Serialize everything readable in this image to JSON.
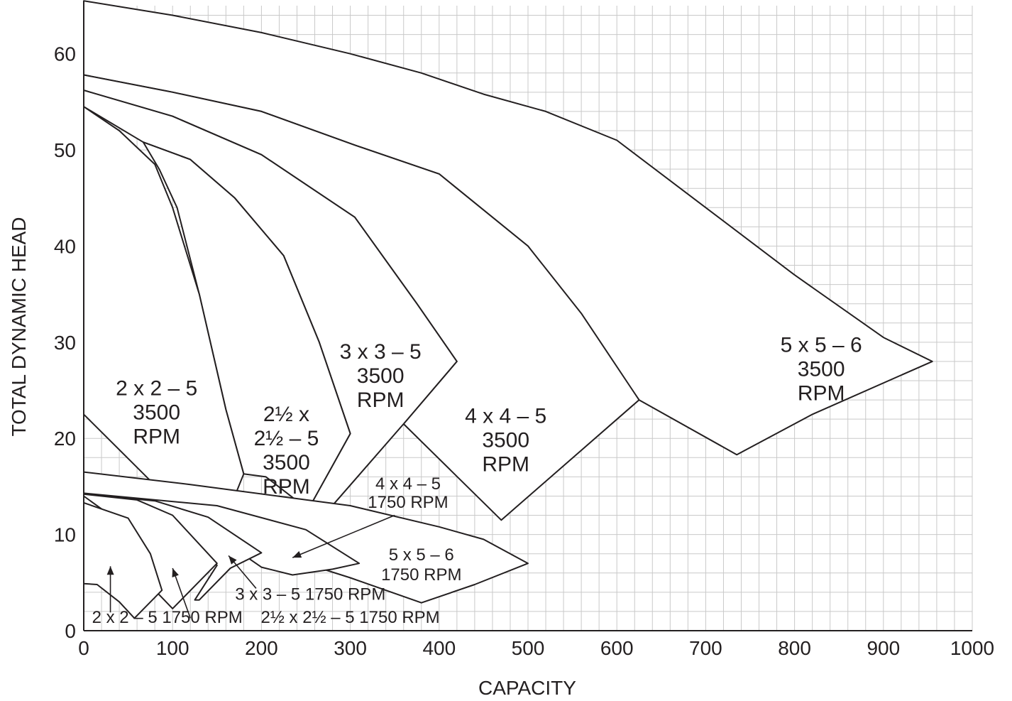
{
  "chart_data": {
    "type": "area",
    "xlabel": "CAPACITY",
    "ylabel": "TOTAL DYNAMIC HEAD",
    "xlim": [
      0,
      1000
    ],
    "ylim": [
      0,
      65
    ],
    "x_ticks": [
      "0",
      "100",
      "200",
      "300",
      "400",
      "500",
      "600",
      "700",
      "800",
      "900",
      "1000"
    ],
    "y_ticks": [
      "0",
      "10",
      "20",
      "30",
      "40",
      "50",
      "60"
    ],
    "grid": true,
    "series": [
      {
        "name": "5 x 5 – 6 3500 RPM",
        "label_lines": [
          "5 x 5 – 6",
          "3500",
          "RPM"
        ],
        "label_at": [
          830,
          29
        ],
        "points": [
          [
            0,
            65.5
          ],
          [
            100,
            64
          ],
          [
            200,
            62.2
          ],
          [
            300,
            60
          ],
          [
            380,
            58
          ],
          [
            450,
            55.8
          ],
          [
            520,
            54
          ],
          [
            600,
            51
          ],
          [
            700,
            44
          ],
          [
            800,
            37
          ],
          [
            900,
            30.5
          ],
          [
            955,
            28
          ],
          [
            820,
            22.5
          ],
          [
            735,
            18.3
          ],
          [
            625,
            24
          ],
          [
            500,
            40
          ],
          [
            400,
            47.5
          ],
          [
            305,
            50.5
          ],
          [
            200,
            54
          ],
          [
            100,
            56
          ],
          [
            0,
            57.8
          ]
        ]
      },
      {
        "name": "4 x 4 – 5 3500 RPM",
        "label_lines": [
          "4 x 4 – 5",
          "3500",
          "RPM"
        ],
        "label_at": [
          475,
          21.6
        ],
        "points": [
          [
            0,
            57.8
          ],
          [
            100,
            56
          ],
          [
            200,
            54
          ],
          [
            305,
            50.5
          ],
          [
            400,
            47.5
          ],
          [
            500,
            40
          ],
          [
            560,
            33
          ],
          [
            625,
            24
          ],
          [
            470,
            11.5
          ],
          [
            360,
            21.5
          ],
          [
            420,
            28
          ],
          [
            375,
            34
          ],
          [
            305,
            43
          ],
          [
            200,
            49.5
          ],
          [
            100,
            53.5
          ],
          [
            0,
            56.2
          ]
        ]
      },
      {
        "name": "3 x 3 – 5 3500 RPM",
        "label_lines": [
          "3 x 3 – 5",
          "3500",
          "RPM"
        ],
        "label_at": [
          334,
          28.3
        ],
        "points": [
          [
            0,
            56.2
          ],
          [
            100,
            53.5
          ],
          [
            200,
            49.5
          ],
          [
            305,
            43
          ],
          [
            375,
            34
          ],
          [
            420,
            28
          ],
          [
            360,
            21.5
          ],
          [
            275,
            12.5
          ],
          [
            258,
            13.5
          ],
          [
            300,
            20.5
          ],
          [
            265,
            30
          ],
          [
            225,
            39
          ],
          [
            170,
            45
          ],
          [
            120,
            49
          ],
          [
            67,
            50.8
          ],
          [
            0,
            54.5
          ]
        ]
      },
      {
        "name": "2½ x 2½ – 5 3500 RPM",
        "label_lines": [
          "2½ x",
          "2½ – 5",
          "3500",
          "RPM"
        ],
        "label_at": [
          228,
          21.8
        ],
        "points": [
          [
            67,
            50.8
          ],
          [
            120,
            49
          ],
          [
            170,
            45
          ],
          [
            225,
            39
          ],
          [
            265,
            30
          ],
          [
            300,
            20.5
          ],
          [
            258,
            13.5
          ],
          [
            240,
            13.5
          ],
          [
            205,
            16
          ],
          [
            180,
            16.3
          ],
          [
            160,
            23
          ],
          [
            130,
            35
          ],
          [
            105,
            44
          ],
          [
            85,
            48
          ],
          [
            67,
            50.8
          ]
        ]
      },
      {
        "name": "2 x 2 – 5 3500 RPM",
        "label_lines": [
          "2 x 2 – 5",
          "3500",
          "RPM"
        ],
        "label_at": [
          82,
          24.5
        ],
        "points": [
          [
            0,
            54.5
          ],
          [
            40,
            52
          ],
          [
            80,
            48.5
          ],
          [
            100,
            44
          ],
          [
            130,
            35
          ],
          [
            160,
            23
          ],
          [
            180,
            16.3
          ],
          [
            170,
            14
          ],
          [
            75,
            15.6
          ],
          [
            0,
            22.5
          ]
        ]
      },
      {
        "name": "5 x 5 – 6 1750 RPM",
        "label_lines": [
          "5 x 5 – 6",
          "1750 RPM"
        ],
        "label_at": [
          380,
          7.3
        ],
        "points": [
          [
            0,
            16.5
          ],
          [
            120,
            15.2
          ],
          [
            300,
            13
          ],
          [
            400,
            10.8
          ],
          [
            450,
            9.5
          ],
          [
            500,
            7
          ],
          [
            440,
            4.8
          ],
          [
            380,
            2.9
          ],
          [
            300,
            5.5
          ],
          [
            0,
            14.3
          ]
        ]
      },
      {
        "name": "4 x 4 – 5 1750 RPM",
        "label_lines": [
          "4 x 4 – 5",
          "1750 RPM"
        ],
        "label_at": [
          0,
          0
        ],
        "points": [
          [
            0,
            14.3
          ],
          [
            150,
            13
          ],
          [
            250,
            10.5
          ],
          [
            310,
            7
          ],
          [
            280,
            6.4
          ],
          [
            235,
            5.8
          ],
          [
            200,
            6.6
          ],
          [
            150,
            9.8
          ],
          [
            0,
            14.3
          ]
        ]
      },
      {
        "name": "3 x 3 – 5 1750 RPM",
        "label_lines": [
          "3 x 3 – 5 1750 RPM"
        ],
        "label_at": [
          0,
          0
        ],
        "points": [
          [
            0,
            14.2
          ],
          [
            80,
            13.5
          ],
          [
            140,
            11.8
          ],
          [
            200,
            8.1
          ],
          [
            165,
            6.5
          ],
          [
            130,
            3.2
          ],
          [
            125,
            3.2
          ],
          [
            150,
            6.8
          ],
          [
            120,
            9.5
          ],
          [
            0,
            14.2
          ]
        ]
      },
      {
        "name": "2½ x 2½ – 5 1750 RPM",
        "label_lines": [
          "2½ x 2½ – 5 1750 RPM"
        ],
        "label_at": [
          0,
          0
        ],
        "points": [
          [
            0,
            14.2
          ],
          [
            60,
            13.6
          ],
          [
            100,
            12
          ],
          [
            150,
            7
          ],
          [
            100,
            2.3
          ],
          [
            80,
            4.2
          ],
          [
            60,
            10
          ],
          [
            0,
            14
          ]
        ]
      },
      {
        "name": "2 x 2 – 5 1750 RPM",
        "label_lines": [
          "2 x 2 – 5 1750 RPM"
        ],
        "label_at": [
          0,
          0
        ],
        "points": [
          [
            0,
            13.3
          ],
          [
            50,
            11.7
          ],
          [
            75,
            8
          ],
          [
            88,
            4.2
          ],
          [
            57,
            1.3
          ],
          [
            40,
            3
          ],
          [
            15,
            4.8
          ],
          [
            0,
            4.9
          ]
        ]
      }
    ],
    "annotations": [
      {
        "text_lines": [
          "4 x 4 – 5",
          "1750 RPM"
        ],
        "at": [
          365,
          14.7
        ],
        "arrow_from": [
          350,
          12
        ],
        "arrow_to": [
          235,
          7.6
        ]
      },
      {
        "text_lines": [
          "3 x 3 – 5 1750 RPM"
        ],
        "at": [
          255,
          3.2
        ],
        "arrow_from": [
          194,
          4.4
        ],
        "arrow_to": [
          163,
          7.8
        ]
      },
      {
        "text_lines": [
          "2½ x 2½ – 5 1750 RPM"
        ],
        "at": [
          300,
          0.8
        ],
        "arrow_from": [
          120,
          1.3
        ],
        "arrow_to": [
          100,
          6.5
        ]
      },
      {
        "text_lines": [
          "2 x 2 – 5 1750 RPM"
        ],
        "at": [
          94,
          0.8
        ],
        "arrow_from": [
          30,
          1.9
        ],
        "arrow_to": [
          30,
          6.7
        ]
      }
    ]
  }
}
